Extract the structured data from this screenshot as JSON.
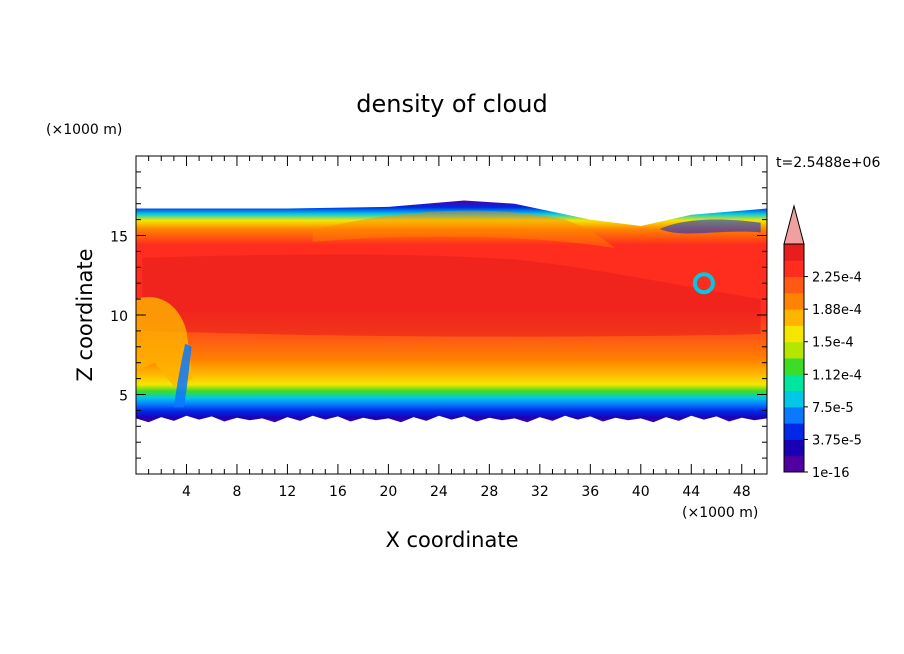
{
  "chart_data": {
    "type": "heatmap",
    "title": "density of cloud",
    "xlabel": "X coordinate",
    "ylabel": "Z coordinate",
    "x_unit": "(×1000 m)",
    "y_unit": "(×1000 m)",
    "time_label": "t=2.5488e+06",
    "xlim": [
      0,
      50
    ],
    "ylim": [
      0,
      20
    ],
    "x_ticks": [
      "4",
      "8",
      "12",
      "16",
      "20",
      "24",
      "28",
      "32",
      "36",
      "40",
      "44",
      "48"
    ],
    "x_tick_values": [
      4,
      8,
      12,
      16,
      20,
      24,
      28,
      32,
      36,
      40,
      44,
      48
    ],
    "y_ticks": [
      "5",
      "10",
      "15"
    ],
    "y_tick_values": [
      5,
      10,
      15
    ],
    "colorbar": {
      "labels": [
        "1e-16",
        "3.75e-5",
        "7.5e-5",
        "1.12e-4",
        "1.5e-4",
        "1.88e-4",
        "2.25e-4"
      ],
      "colors": [
        "#5000a0",
        "#1a00b4",
        "#0028e6",
        "#0a78ff",
        "#00c8e6",
        "#00e6a0",
        "#3cdc28",
        "#b4e600",
        "#f5e600",
        "#ffb400",
        "#ff8200",
        "#ff5a14",
        "#ff2d1e",
        "#e61e1e"
      ],
      "extend_color": "#f0a0a0"
    },
    "cloud_region": {
      "base_z": 3.5,
      "top_z_profile": [
        [
          0,
          16.7
        ],
        [
          12,
          16.7
        ],
        [
          20,
          16.8
        ],
        [
          26,
          17.2
        ],
        [
          30,
          17.0
        ],
        [
          36,
          16.0
        ],
        [
          40,
          15.6
        ],
        [
          44,
          16.3
        ],
        [
          50,
          16.7
        ]
      ],
      "core_value": "2.25e-4"
    }
  }
}
